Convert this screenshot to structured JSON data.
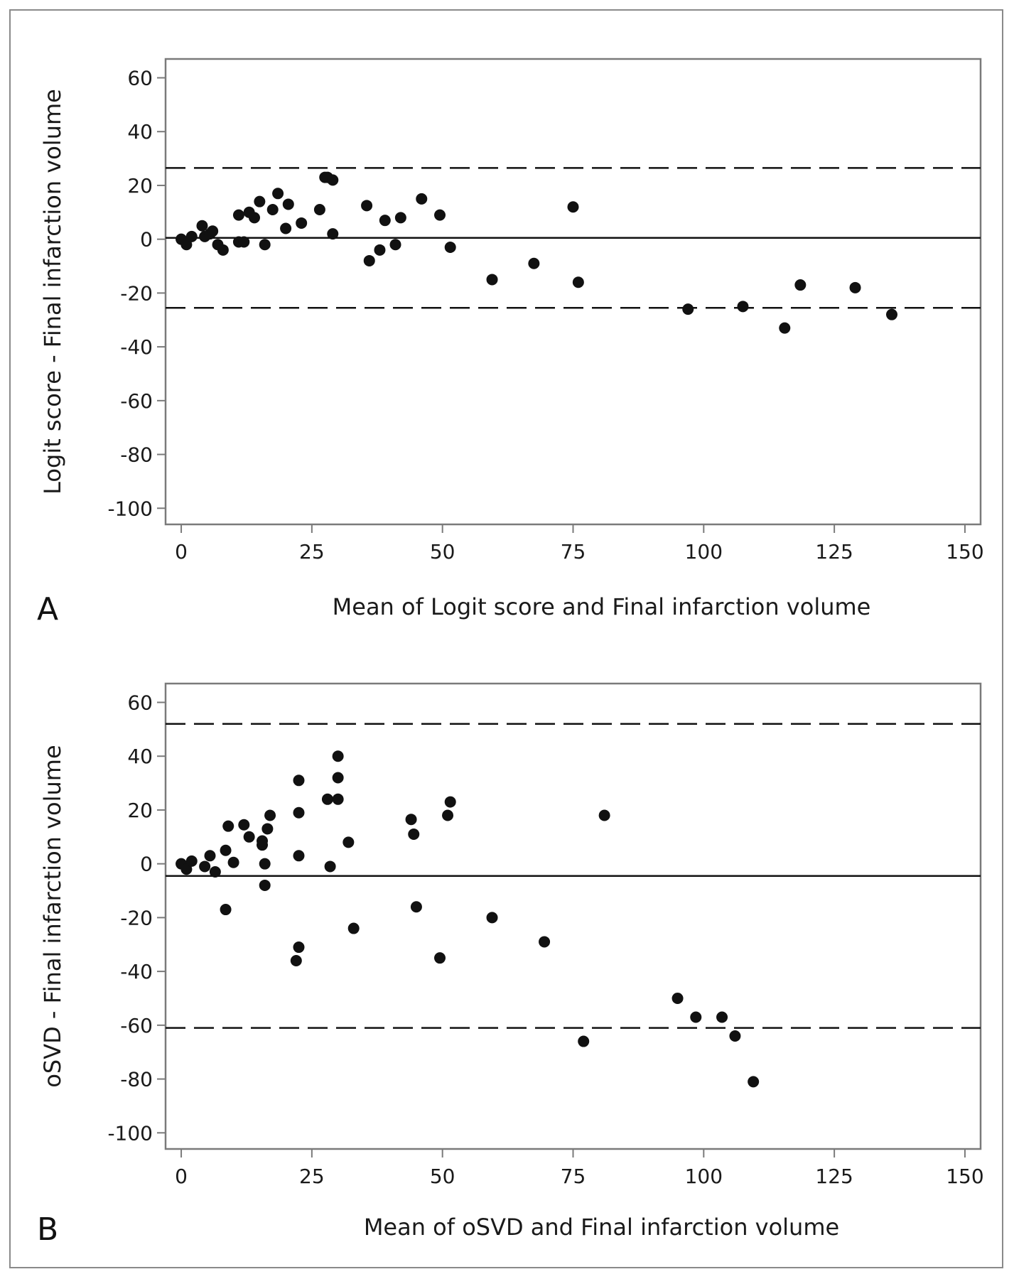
{
  "chart_data": [
    {
      "panel_label": "A",
      "type": "scatter",
      "title": "",
      "xlabel": "Mean of Logit score and Final infarction volume",
      "ylabel": "Logit score - Final infarction volume",
      "xlim": [
        -3,
        153
      ],
      "ylim": [
        -106,
        67
      ],
      "xticks": [
        0,
        25,
        50,
        75,
        100,
        125,
        150
      ],
      "yticks": [
        60,
        40,
        20,
        0,
        -20,
        -40,
        -60,
        -80,
        -100
      ],
      "grid": false,
      "mean_difference": 0.5,
      "limits_of_agreement": [
        26.5,
        -25.5
      ],
      "points": [
        [
          0,
          0
        ],
        [
          1,
          -2
        ],
        [
          2,
          1
        ],
        [
          4,
          5
        ],
        [
          4.5,
          1
        ],
        [
          5.5,
          2
        ],
        [
          6,
          3
        ],
        [
          7,
          -2
        ],
        [
          8,
          -4
        ],
        [
          11,
          9
        ],
        [
          11,
          -1
        ],
        [
          12,
          -1
        ],
        [
          13,
          10
        ],
        [
          14,
          8
        ],
        [
          15,
          14
        ],
        [
          16,
          -2
        ],
        [
          17.5,
          11
        ],
        [
          18.5,
          17
        ],
        [
          20,
          4
        ],
        [
          20.5,
          13
        ],
        [
          23,
          6
        ],
        [
          26.5,
          11
        ],
        [
          27.5,
          23
        ],
        [
          28,
          23
        ],
        [
          29,
          22
        ],
        [
          29,
          2
        ],
        [
          35.5,
          12.5
        ],
        [
          36,
          -8
        ],
        [
          38,
          -4
        ],
        [
          39,
          7
        ],
        [
          41,
          -2
        ],
        [
          42,
          8
        ],
        [
          46,
          15
        ],
        [
          49.5,
          9
        ],
        [
          51.5,
          -3
        ],
        [
          59.5,
          -15
        ],
        [
          67.5,
          -9
        ],
        [
          75,
          12
        ],
        [
          76,
          -16
        ],
        [
          97,
          -26
        ],
        [
          107.5,
          -25
        ],
        [
          115.5,
          -33
        ],
        [
          118.5,
          -17
        ],
        [
          129,
          -18
        ],
        [
          136,
          -28
        ]
      ]
    },
    {
      "panel_label": "B",
      "type": "scatter",
      "title": "",
      "xlabel": "Mean of oSVD and Final infarction volume",
      "ylabel": "oSVD - Final infarction volume",
      "xlim": [
        -3,
        153
      ],
      "ylim": [
        -106,
        67
      ],
      "xticks": [
        0,
        25,
        50,
        75,
        100,
        125,
        150
      ],
      "yticks": [
        60,
        40,
        20,
        0,
        -20,
        -40,
        -60,
        -80,
        -100
      ],
      "grid": false,
      "mean_difference": -4.5,
      "limits_of_agreement": [
        52,
        -61
      ],
      "points": [
        [
          0,
          0
        ],
        [
          1,
          -2
        ],
        [
          2,
          1
        ],
        [
          4.5,
          -1
        ],
        [
          5.5,
          3
        ],
        [
          6.5,
          -3
        ],
        [
          8.5,
          5
        ],
        [
          8.5,
          -17
        ],
        [
          9,
          14
        ],
        [
          10,
          0.5
        ],
        [
          12,
          14.5
        ],
        [
          13,
          10
        ],
        [
          15.5,
          7
        ],
        [
          15.5,
          8.5
        ],
        [
          16,
          0
        ],
        [
          16,
          -8
        ],
        [
          16.5,
          13
        ],
        [
          17,
          18
        ],
        [
          22,
          -36
        ],
        [
          22.5,
          31
        ],
        [
          22.5,
          19
        ],
        [
          22.5,
          3
        ],
        [
          22.5,
          -31
        ],
        [
          28,
          24
        ],
        [
          28.5,
          -1
        ],
        [
          30,
          40
        ],
        [
          30,
          32
        ],
        [
          30,
          24
        ],
        [
          32,
          8
        ],
        [
          33,
          -24
        ],
        [
          44,
          16.5
        ],
        [
          44.5,
          11
        ],
        [
          45,
          -16
        ],
        [
          49.5,
          -35
        ],
        [
          51,
          18
        ],
        [
          51.5,
          23
        ],
        [
          59.5,
          -20
        ],
        [
          69.5,
          -29
        ],
        [
          77,
          -66
        ],
        [
          81,
          18
        ],
        [
          95,
          -50
        ],
        [
          98.5,
          -57
        ],
        [
          103.5,
          -57
        ],
        [
          106,
          -64
        ],
        [
          109.5,
          -81
        ]
      ]
    }
  ]
}
